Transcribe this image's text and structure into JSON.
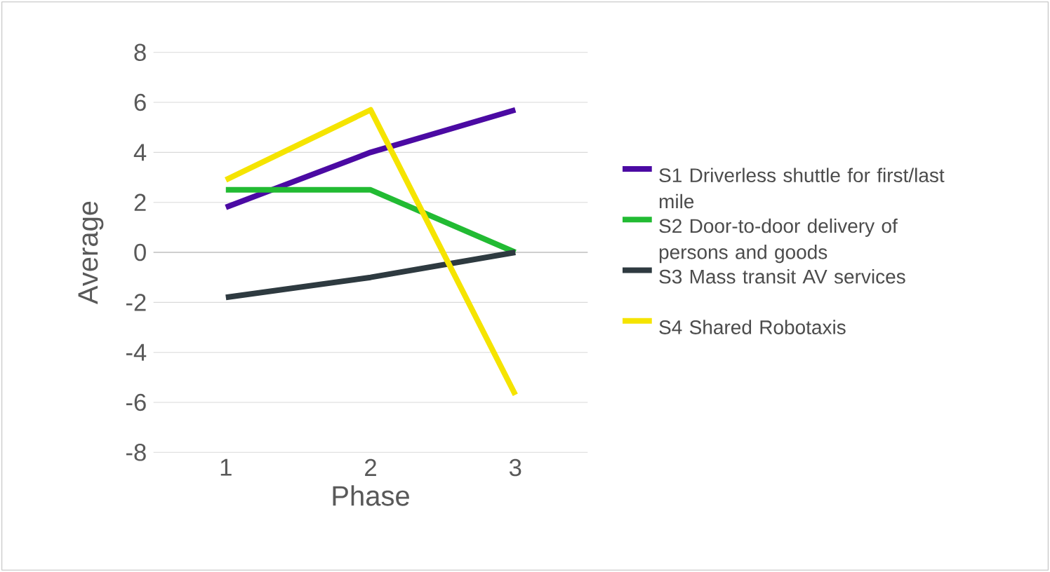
{
  "chart_data": {
    "type": "line",
    "xlabel": "Phase",
    "ylabel": "Average",
    "categories": [
      "1",
      "2",
      "3"
    ],
    "series": [
      {
        "name": "S1 Driverless shuttle for first/last mile",
        "color": "#4b0aa3",
        "values": [
          1.8,
          4.0,
          5.7
        ]
      },
      {
        "name": "S2 Door-to-door delivery of persons and goods",
        "color": "#22bb33",
        "values": [
          2.5,
          2.5,
          0
        ]
      },
      {
        "name": "S3 Mass transit AV services",
        "color": "#2e3a40",
        "values": [
          -1.8,
          -1.0,
          0
        ]
      },
      {
        "name": "S4 Shared Robotaxis",
        "color": "#f5e400",
        "values": [
          2.9,
          5.7,
          -5.7
        ]
      }
    ],
    "ylim": [
      -8,
      8
    ],
    "yticks": [
      -8,
      -6,
      -4,
      -2,
      0,
      2,
      4,
      6,
      8
    ],
    "grid": "y",
    "legend": "right",
    "marker": "none",
    "line_style": "solid"
  }
}
